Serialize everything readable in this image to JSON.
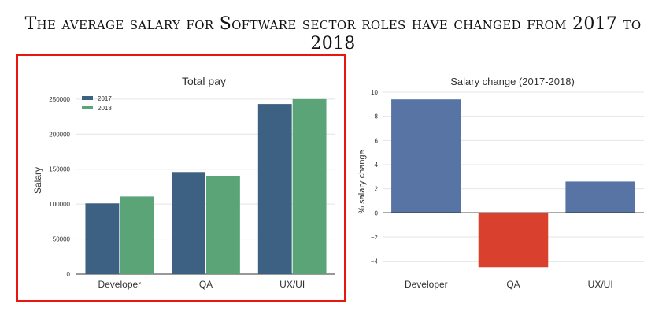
{
  "headline": "The average salary for Software sector roles have changed from 2017 to 2018",
  "chart_data": [
    {
      "type": "bar",
      "title": "Total pay",
      "xlabel": "",
      "ylabel": "Salary",
      "categories": [
        "Developer",
        "QA",
        "UX/UI"
      ],
      "series": [
        {
          "name": "2017",
          "values": [
            101000,
            146000,
            243000
          ],
          "color": "#3d6182"
        },
        {
          "name": "2018",
          "values": [
            111000,
            140000,
            250000
          ],
          "color": "#5aa478"
        }
      ],
      "ylim": [
        0,
        260000
      ],
      "yticks": [
        "0",
        "50000",
        "100000",
        "150000",
        "200000",
        "250000"
      ],
      "ytick_values": [
        0,
        50000,
        100000,
        150000,
        200000,
        250000
      ],
      "grid": true,
      "legend": "top-left"
    },
    {
      "type": "bar",
      "title": "Salary change (2017-2018)",
      "xlabel": "",
      "ylabel": "% salary change",
      "categories": [
        "Developer",
        "QA",
        "UX/UI"
      ],
      "values": [
        9.4,
        -4.5,
        2.6
      ],
      "colors": [
        "#5874a4",
        "#d9402e",
        "#5874a4"
      ],
      "ylim": [
        -5.2,
        10
      ],
      "yticks": [
        "−4",
        "−2",
        "0",
        "2",
        "4",
        "6",
        "8",
        "10"
      ],
      "ytick_values": [
        -4,
        -2,
        0,
        2,
        4,
        6,
        8,
        10
      ],
      "grid": true
    }
  ]
}
